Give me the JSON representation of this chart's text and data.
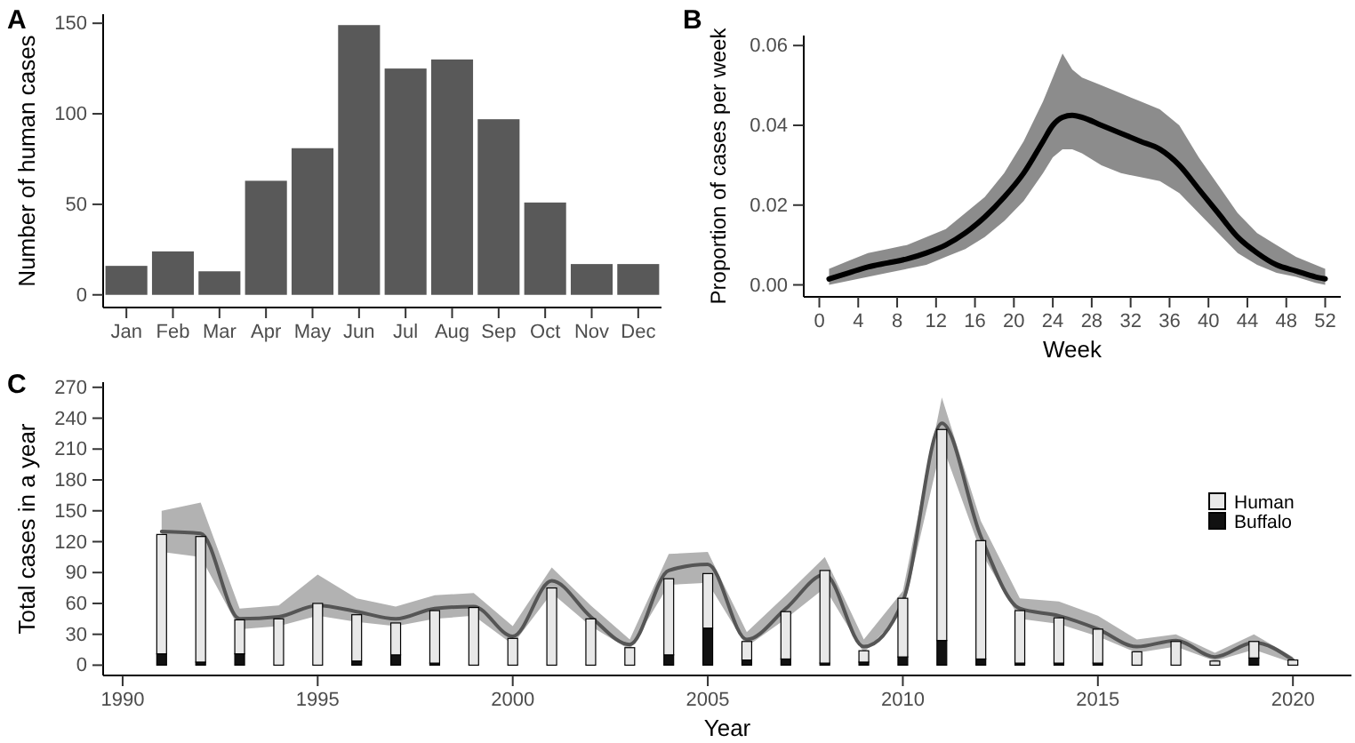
{
  "chart_data": [
    {
      "type": "bar",
      "title": "A",
      "ylabel": "Number of human cases",
      "categories": [
        "Jan",
        "Feb",
        "Mar",
        "Apr",
        "May",
        "Jun",
        "Jul",
        "Aug",
        "Sep",
        "Oct",
        "Nov",
        "Dec"
      ],
      "values": [
        16,
        24,
        13,
        63,
        81,
        149,
        125,
        130,
        97,
        51,
        17,
        17
      ],
      "color": "#595959",
      "ylim": [
        -7,
        155
      ],
      "yticks": [
        0,
        50,
        100,
        150
      ],
      "grid": false,
      "legend": false
    },
    {
      "type": "line",
      "title": "B",
      "xlabel": "Week",
      "ylabel": "Proportion of cases per week",
      "xlim": [
        -1.6,
        53.6
      ],
      "xticks": [
        0,
        4,
        8,
        12,
        16,
        20,
        24,
        28,
        32,
        36,
        40,
        44,
        48,
        52
      ],
      "ylim": [
        -0.003,
        0.0625
      ],
      "yticks": [
        {
          "value": 0,
          "label": "0.00"
        },
        {
          "value": 0.02,
          "label": "0.02"
        },
        {
          "value": 0.04,
          "label": "0.04"
        },
        {
          "value": 0.06,
          "label": "0.06"
        }
      ],
      "grid": false,
      "legend": false,
      "marker": "none",
      "line_style": "solid",
      "series": [
        {
          "color": "#000000",
          "x": [
            1,
            3,
            5,
            7,
            9,
            11,
            13,
            15,
            17,
            19,
            21,
            23,
            24,
            25,
            26,
            27,
            29,
            31,
            33,
            35,
            37,
            39,
            41,
            43,
            45,
            47,
            49,
            51,
            52
          ],
          "values": [
            0.0015,
            0.003,
            0.0045,
            0.0055,
            0.0065,
            0.008,
            0.01,
            0.013,
            0.017,
            0.022,
            0.028,
            0.036,
            0.04,
            0.042,
            0.0425,
            0.042,
            0.04,
            0.038,
            0.036,
            0.034,
            0.03,
            0.024,
            0.018,
            0.012,
            0.008,
            0.005,
            0.0035,
            0.002,
            0.0015
          ],
          "lower": [
            0,
            0.001,
            0.002,
            0.003,
            0.004,
            0.005,
            0.007,
            0.009,
            0.012,
            0.016,
            0.021,
            0.028,
            0.032,
            0.034,
            0.034,
            0.033,
            0.03,
            0.028,
            0.027,
            0.026,
            0.023,
            0.018,
            0.013,
            0.008,
            0.005,
            0.003,
            0.002,
            0.0005,
            0
          ],
          "upper": [
            0.004,
            0.006,
            0.008,
            0.009,
            0.01,
            0.012,
            0.014,
            0.018,
            0.022,
            0.028,
            0.036,
            0.046,
            0.052,
            0.058,
            0.054,
            0.052,
            0.05,
            0.048,
            0.046,
            0.044,
            0.04,
            0.032,
            0.025,
            0.018,
            0.013,
            0.01,
            0.007,
            0.005,
            0.004
          ]
        }
      ]
    },
    {
      "type": "bar",
      "title": "C",
      "xlabel": "Year",
      "ylabel": "Total cases in a year",
      "xlim": [
        1989.5,
        2021.5
      ],
      "xticks": [
        1990,
        1995,
        2000,
        2005,
        2010,
        2015,
        2020
      ],
      "ylim": [
        -10,
        275
      ],
      "yticks": [
        0,
        30,
        60,
        90,
        120,
        150,
        180,
        210,
        240,
        270
      ],
      "grid": false,
      "legend": "right",
      "stacked": true,
      "x": [
        1991,
        1992,
        1993,
        1994,
        1995,
        1996,
        1997,
        1998,
        1999,
        2000,
        2001,
        2002,
        2003,
        2004,
        2005,
        2006,
        2007,
        2008,
        2009,
        2010,
        2011,
        2012,
        2013,
        2014,
        2015,
        2016,
        2017,
        2018,
        2019,
        2020
      ],
      "series": [
        {
          "type": "line",
          "color": "#555555",
          "values": [
            130,
            128,
            45,
            47,
            58,
            52,
            45,
            55,
            57,
            28,
            82,
            47,
            20,
            92,
            98,
            25,
            55,
            88,
            18,
            62,
            235,
            125,
            55,
            48,
            35,
            18,
            24,
            8,
            22,
            5
          ],
          "lower": [
            110,
            105,
            35,
            38,
            48,
            42,
            38,
            45,
            48,
            20,
            70,
            38,
            15,
            78,
            80,
            18,
            45,
            75,
            12,
            52,
            215,
            110,
            45,
            40,
            28,
            12,
            18,
            4,
            15,
            2
          ],
          "upper": [
            150,
            158,
            55,
            58,
            88,
            65,
            57,
            68,
            70,
            38,
            95,
            58,
            25,
            108,
            110,
            32,
            68,
            105,
            25,
            72,
            260,
            140,
            65,
            62,
            48,
            25,
            30,
            12,
            30,
            8
          ]
        },
        {
          "name": "Buffalo",
          "color": "#111111",
          "values": [
            11,
            3,
            11,
            0,
            0,
            4,
            10,
            2,
            0,
            0,
            0,
            0,
            0,
            10,
            36,
            5,
            6,
            2,
            3,
            8,
            24,
            6,
            2,
            2,
            2,
            0,
            0,
            0,
            7,
            0
          ]
        },
        {
          "name": "Human",
          "color": "#e8e8e8",
          "values": [
            116,
            122,
            33,
            45,
            60,
            45,
            31,
            51,
            56,
            26,
            75,
            45,
            17,
            74,
            53,
            18,
            46,
            90,
            11,
            57,
            205,
            115,
            51,
            44,
            33,
            13,
            23,
            4,
            16,
            5
          ]
        }
      ]
    }
  ]
}
